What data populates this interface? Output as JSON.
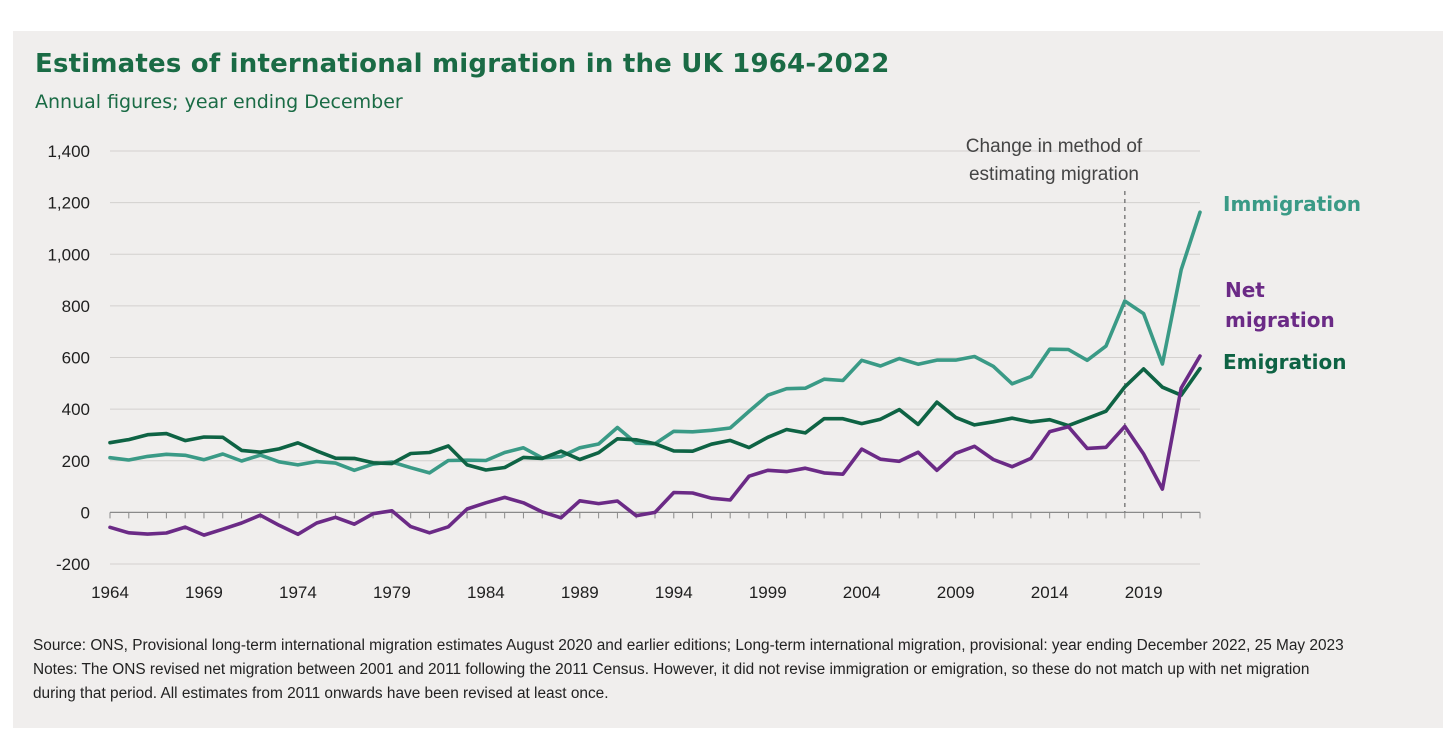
{
  "header": {
    "title": "Estimates of international migration in the UK 1964-2022",
    "subtitle": "Annual figures; year ending December"
  },
  "annotation": {
    "line1": "Change in method of",
    "line2": "estimating migration",
    "year": 2018
  },
  "footer": {
    "source": "Source: ONS, Provisional long-term international migration estimates August 2020 and earlier editions; Long-term international migration, provisional: year ending December 2022, 25 May 2023",
    "notes_line1": "Notes: The ONS revised net migration between 2001 and 2011 following the 2011 Census. However, it did not revise immigration or emigration, so these do not match up with net migration",
    "notes_line2": "during that period. All estimates from 2011 onwards have been revised at least once."
  },
  "chart_data": {
    "type": "line",
    "title": "Estimates of international migration in the UK 1964-2022",
    "subtitle": "Annual figures; year ending December",
    "xlabel": "",
    "ylabel": "",
    "xlim": [
      1964,
      2022
    ],
    "ylim": [
      -200,
      1400
    ],
    "x_ticks": [
      1964,
      1969,
      1974,
      1979,
      1984,
      1989,
      1994,
      1999,
      2004,
      2009,
      2014,
      2019
    ],
    "y_ticks": [
      -200,
      0,
      200,
      400,
      600,
      800,
      1000,
      1200,
      1400
    ],
    "y_tick_labels": [
      "-200",
      "0",
      "200",
      "400",
      "600",
      "800",
      "1,000",
      "1,200",
      "1,400"
    ],
    "grid": "horizontal",
    "legend": "direct labels at right",
    "x": [
      1964,
      1965,
      1966,
      1967,
      1968,
      1969,
      1970,
      1971,
      1972,
      1973,
      1974,
      1975,
      1976,
      1977,
      1978,
      1979,
      1980,
      1981,
      1982,
      1983,
      1984,
      1985,
      1986,
      1987,
      1988,
      1989,
      1990,
      1991,
      1992,
      1993,
      1994,
      1995,
      1996,
      1997,
      1998,
      1999,
      2000,
      2001,
      2002,
      2003,
      2004,
      2005,
      2006,
      2007,
      2008,
      2009,
      2010,
      2011,
      2012,
      2013,
      2014,
      2015,
      2016,
      2017,
      2018,
      2019,
      2020,
      2021,
      2022
    ],
    "series": [
      {
        "name": "Immigration",
        "label_lines": [
          "Immigration"
        ],
        "color": "#3a9a86",
        "values": [
          212,
          203,
          217,
          225,
          221,
          204,
          226,
          199,
          222,
          196,
          184,
          197,
          191,
          163,
          187,
          195,
          173,
          153,
          201,
          202,
          201,
          232,
          250,
          211,
          216,
          250,
          265,
          329,
          268,
          266,
          314,
          312,
          318,
          327,
          391,
          454,
          479,
          481,
          516,
          511,
          589,
          567,
          596,
          574,
          590,
          590,
          604,
          566,
          498,
          526,
          632,
          631,
          589,
          644,
          819,
          770,
          575,
          940,
          1163
        ]
      },
      {
        "name": "Emigration",
        "label_lines": [
          "Emigration"
        ],
        "color": "#0e6344",
        "values": [
          270,
          282,
          301,
          305,
          278,
          292,
          291,
          240,
          233,
          246,
          269,
          238,
          210,
          209,
          192,
          189,
          228,
          232,
          257,
          184,
          164,
          174,
          213,
          209,
          237,
          205,
          231,
          285,
          281,
          266,
          238,
          237,
          264,
          279,
          251,
          291,
          321,
          308,
          363,
          363,
          344,
          361,
          398,
          341,
          427,
          368,
          339,
          351,
          365,
          350,
          359,
          336,
          364,
          392,
          486,
          556,
          485,
          454,
          557
        ]
      },
      {
        "name": "Net migration",
        "label_lines": [
          "Net",
          "migration"
        ],
        "color": "#6b2a86",
        "values": [
          -58,
          -79,
          -84,
          -80,
          -57,
          -88,
          -65,
          -41,
          -11,
          -50,
          -85,
          -41,
          -19,
          -46,
          -5,
          6,
          -55,
          -79,
          -56,
          13,
          37,
          58,
          37,
          2,
          -21,
          45,
          34,
          44,
          -13,
          0,
          77,
          75,
          55,
          48,
          140,
          163,
          158,
          171,
          153,
          148,
          245,
          206,
          198,
          233,
          163,
          229,
          256,
          205,
          177,
          209,
          313,
          332,
          248,
          252,
          333,
          226,
          90,
          482,
          606
        ]
      }
    ]
  }
}
